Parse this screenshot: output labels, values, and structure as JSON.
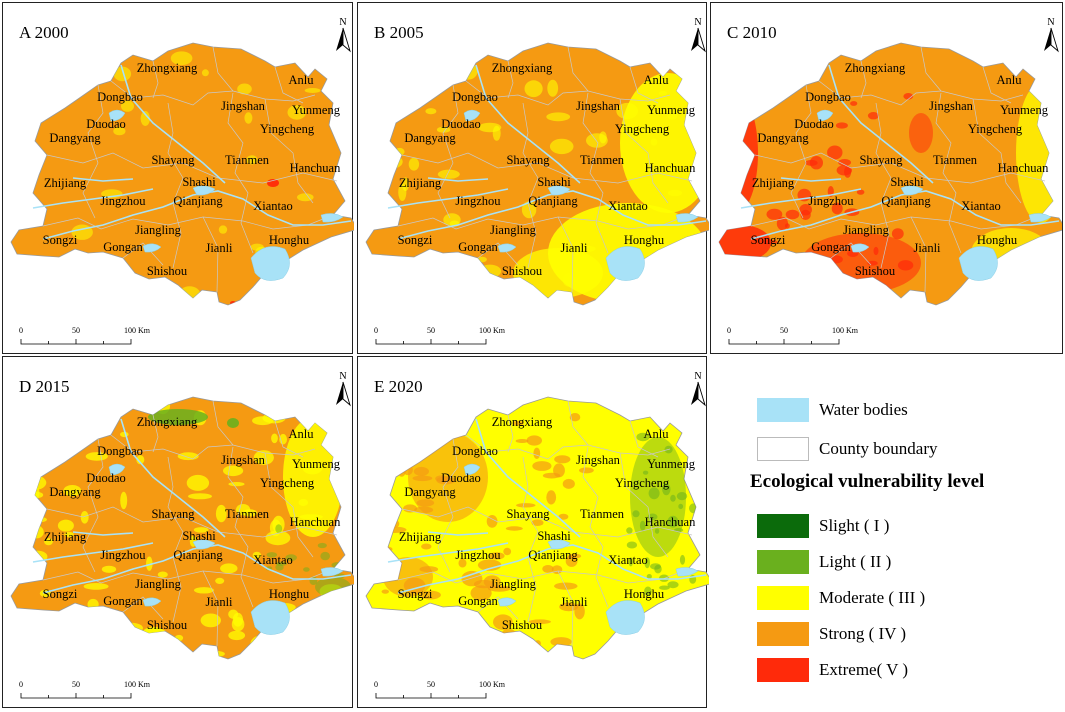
{
  "panels": [
    {
      "title": "A 2000",
      "scheme": "a"
    },
    {
      "title": "B 2005",
      "scheme": "b"
    },
    {
      "title": "C 2010",
      "scheme": "c"
    },
    {
      "title": "D 2015",
      "scheme": "d"
    },
    {
      "title": "E 2020",
      "scheme": "e"
    }
  ],
  "north_label": "N",
  "scale_bar": {
    "ticks": [
      "0",
      "50",
      "100 Km"
    ]
  },
  "places": [
    "Zhongxiang",
    "Anlu",
    "Dongbao",
    "Jingshan",
    "Yunmeng",
    "Yingcheng",
    "Duodao",
    "Dangyang",
    "Shayang",
    "Tianmen",
    "Hanchuan",
    "Zhijiang",
    "Shashi",
    "Jingzhou",
    "Qianjiang",
    "Xiantao",
    "Jiangling",
    "Songzi",
    "Gongan",
    "Jianli",
    "Honghu",
    "Shishou"
  ],
  "legend": {
    "water": "Water bodies",
    "boundary": "County boundary",
    "heading": "Ecological vulnerability level",
    "levels": [
      {
        "label": "Slight ( I )",
        "color": "#0b6b0b"
      },
      {
        "label": "Light ( II )",
        "color": "#6ab01e"
      },
      {
        "label": "Moderate ( III )",
        "color": "#ffff00"
      },
      {
        "label": "Strong ( IV )",
        "color": "#f59a12"
      },
      {
        "label": "Extreme( V )",
        "color": "#ff2a0a"
      }
    ]
  },
  "colors": {
    "water": "#a8e2f7",
    "boundary": "#c8c8c8",
    "strong": "#f59a12",
    "moderate": "#ffff00",
    "light": "#6ab01e",
    "extreme": "#ff2a0a"
  }
}
